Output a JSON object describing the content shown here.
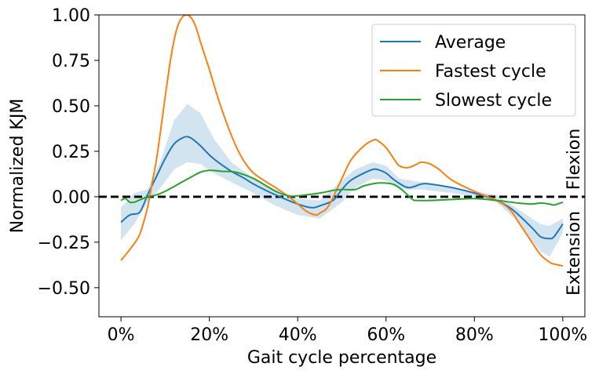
{
  "chart_data": {
    "type": "line",
    "xlabel": "Gait cycle percentage",
    "ylabel": "Normalized KJM",
    "xlim": [
      -5,
      105
    ],
    "ylim": [
      -0.66,
      1.0
    ],
    "x_ticks": [
      0,
      20,
      40,
      60,
      80,
      100
    ],
    "x_tick_labels": [
      "0%",
      "20%",
      "40%",
      "60%",
      "80%",
      "100%"
    ],
    "y_ticks": [
      -0.5,
      -0.25,
      0.0,
      0.25,
      0.5,
      0.75,
      1.0
    ],
    "y_tick_labels": [
      "−0.50",
      "−0.25",
      "0.00",
      "0.25",
      "0.50",
      "0.75",
      "1.00"
    ],
    "legend_position": "top-right",
    "zero_line": {
      "y": 0,
      "style": "dashed",
      "color": "#000000"
    },
    "annotations": [
      {
        "text": "Flexion",
        "side": "right",
        "region": "positive"
      },
      {
        "text": "Extension",
        "side": "right",
        "region": "negative"
      }
    ],
    "band": {
      "series": "Average",
      "color": "#1f77b4",
      "opacity": 0.2,
      "x": [
        0,
        3,
        6,
        9,
        12,
        15,
        18,
        21,
        25,
        30,
        35,
        40,
        45,
        50,
        53,
        57,
        60,
        63,
        68,
        75,
        80,
        85,
        90,
        93,
        95,
        97,
        100
      ],
      "upper": [
        -0.06,
        0.02,
        0.04,
        0.2,
        0.42,
        0.51,
        0.46,
        0.32,
        0.19,
        0.1,
        0.04,
        -0.01,
        -0.02,
        0.09,
        0.15,
        0.19,
        0.17,
        0.1,
        0.08,
        0.05,
        0.03,
        0.01,
        -0.07,
        -0.12,
        -0.15,
        -0.16,
        -0.12
      ],
      "lower": [
        -0.24,
        -0.15,
        -0.03,
        0.05,
        0.15,
        0.19,
        0.18,
        0.13,
        0.08,
        0.02,
        -0.05,
        -0.1,
        -0.12,
        -0.03,
        0.05,
        0.1,
        0.09,
        0.04,
        0.04,
        0.02,
        0.0,
        -0.03,
        -0.14,
        -0.24,
        -0.3,
        -0.33,
        -0.2
      ]
    },
    "series": [
      {
        "name": "Average",
        "color": "#1f77b4",
        "x": [
          0,
          2,
          4,
          5,
          6,
          7,
          8,
          10,
          12,
          14,
          15,
          16,
          18,
          20,
          22,
          25,
          28,
          30,
          35,
          40,
          43,
          45,
          48,
          50,
          52,
          55,
          57,
          58,
          60,
          62,
          65,
          68,
          70,
          75,
          80,
          85,
          88,
          90,
          93,
          95,
          97,
          98,
          100
        ],
        "y": [
          -0.14,
          -0.1,
          -0.09,
          -0.05,
          0.01,
          0.06,
          0.11,
          0.21,
          0.29,
          0.325,
          0.33,
          0.32,
          0.28,
          0.23,
          0.19,
          0.14,
          0.1,
          0.07,
          0.01,
          -0.04,
          -0.06,
          -0.05,
          -0.02,
          0.04,
          0.09,
          0.13,
          0.15,
          0.15,
          0.13,
          0.09,
          0.05,
          0.07,
          0.07,
          0.05,
          0.02,
          -0.02,
          -0.06,
          -0.1,
          -0.17,
          -0.22,
          -0.23,
          -0.22,
          -0.15
        ]
      },
      {
        "name": "Fastest cycle",
        "color": "#ff7f0e",
        "x": [
          0,
          2,
          4,
          5,
          6,
          7,
          8,
          9,
          10,
          11,
          12,
          13,
          14,
          15,
          16,
          17,
          18,
          20,
          22,
          24,
          26,
          28,
          30,
          33,
          35,
          38,
          40,
          42,
          44,
          45,
          47,
          50,
          52,
          55,
          57,
          58,
          60,
          62,
          63,
          65,
          67,
          68,
          70,
          72,
          75,
          80,
          85,
          88,
          90,
          93,
          95,
          97,
          98,
          100
        ],
        "y": [
          -0.35,
          -0.29,
          -0.22,
          -0.15,
          -0.06,
          0.07,
          0.2,
          0.37,
          0.55,
          0.72,
          0.86,
          0.95,
          0.99,
          1.0,
          0.98,
          0.93,
          0.85,
          0.7,
          0.54,
          0.4,
          0.28,
          0.19,
          0.13,
          0.08,
          0.05,
          0.0,
          -0.04,
          -0.08,
          -0.1,
          -0.09,
          -0.05,
          0.1,
          0.2,
          0.28,
          0.31,
          0.31,
          0.27,
          0.2,
          0.17,
          0.16,
          0.18,
          0.19,
          0.18,
          0.15,
          0.09,
          0.03,
          -0.02,
          -0.07,
          -0.14,
          -0.25,
          -0.32,
          -0.36,
          -0.37,
          -0.38
        ]
      },
      {
        "name": "Slowest cycle",
        "color": "#2ca02c",
        "x": [
          0,
          1,
          2,
          3,
          4,
          5,
          6,
          8,
          10,
          13,
          16,
          18,
          20,
          23,
          26,
          30,
          35,
          38,
          40,
          45,
          48,
          50,
          53,
          55,
          58,
          60,
          62,
          64,
          66,
          67,
          70,
          75,
          80,
          85,
          90,
          93,
          95,
          97,
          98,
          100
        ],
        "y": [
          -0.02,
          -0.01,
          -0.03,
          -0.03,
          -0.02,
          -0.01,
          0.0,
          0.01,
          0.03,
          0.07,
          0.11,
          0.135,
          0.145,
          0.14,
          0.135,
          0.1,
          0.03,
          0.005,
          0.005,
          0.02,
          0.035,
          0.04,
          0.04,
          0.06,
          0.075,
          0.075,
          0.065,
          0.03,
          -0.015,
          -0.02,
          -0.02,
          -0.015,
          -0.01,
          -0.02,
          -0.035,
          -0.04,
          -0.035,
          -0.04,
          -0.045,
          -0.03
        ]
      }
    ]
  }
}
